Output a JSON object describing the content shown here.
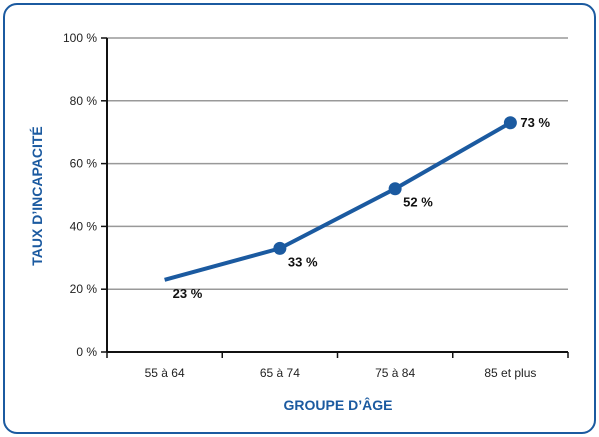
{
  "chart_data": {
    "type": "line",
    "categories": [
      "55 à 64",
      "65 à 74",
      "75 à 84",
      "85 et plus"
    ],
    "series": [
      {
        "values": [
          23,
          33,
          52,
          73
        ],
        "data_labels": [
          "23 %",
          "33 %",
          "52 %",
          "73 %"
        ]
      }
    ],
    "ylim": [
      0,
      100
    ],
    "ytick_values": [
      0,
      20,
      40,
      60,
      80,
      100
    ],
    "ytick_labels": [
      "0 %",
      "20 %",
      "40 %",
      "60 %",
      "80 %",
      "100 %"
    ],
    "xlabel": "GROUPE D’ÂGE",
    "ylabel": "TAUX D’INCAPACITÉ",
    "grid": true,
    "colors": {
      "line": "#1b5aa0",
      "axis_title": "#1b5aa0",
      "border": "#1b5aa0",
      "grid": "#999999"
    }
  }
}
